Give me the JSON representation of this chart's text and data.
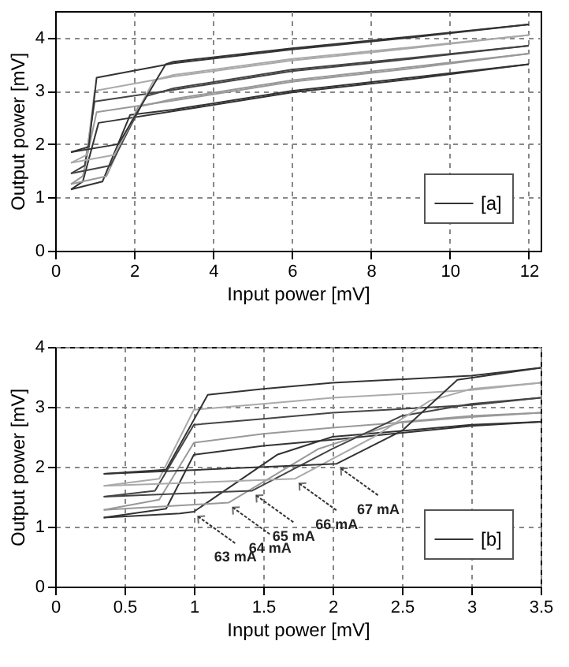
{
  "chart_data": [
    {
      "type": "line",
      "xlabel": "Input power [mV]",
      "ylabel": "Output power [mV]",
      "xlim": [
        0,
        12.3
      ],
      "ylim": [
        0,
        4.5
      ],
      "xticks": [
        0,
        2,
        4,
        6,
        8,
        10,
        12
      ],
      "yticks": [
        0,
        1,
        2,
        3,
        4
      ],
      "grid": true,
      "line_style": "solid",
      "legend": "bottom right",
      "series": [
        {
          "name": "[a]",
          "color": "#333333",
          "x": [
            0.4,
            1.2,
            1.9,
            3,
            6,
            9,
            12
          ],
          "values": [
            1.15,
            1.3,
            2.55,
            2.65,
            3.0,
            3.25,
            3.5
          ]
        },
        {
          "color": "#333333",
          "x": [
            0.4,
            0.7,
            1.1,
            3,
            6,
            9,
            12
          ],
          "values": [
            1.15,
            1.3,
            2.4,
            2.62,
            2.97,
            3.22,
            3.5
          ]
        },
        {
          "color": "#999999",
          "x": [
            0.4,
            1.3,
            2.1,
            3,
            6,
            9,
            12
          ],
          "values": [
            1.25,
            1.4,
            2.7,
            2.85,
            3.2,
            3.45,
            3.7
          ]
        },
        {
          "color": "#999999",
          "x": [
            0.4,
            0.7,
            1.05,
            3,
            6,
            9,
            12
          ],
          "values": [
            1.25,
            1.4,
            2.6,
            2.82,
            3.17,
            3.42,
            3.7
          ]
        },
        {
          "color": "#444444",
          "x": [
            0.4,
            1.4,
            2.3,
            3,
            6,
            9,
            12
          ],
          "values": [
            1.45,
            1.6,
            2.9,
            3.05,
            3.4,
            3.62,
            3.85
          ]
        },
        {
          "color": "#444444",
          "x": [
            0.4,
            0.75,
            1.0,
            3,
            6,
            9,
            12
          ],
          "values": [
            1.45,
            1.6,
            2.8,
            3.02,
            3.37,
            3.6,
            3.85
          ]
        },
        {
          "color": "#aaaaaa",
          "x": [
            0.4,
            1.5,
            2.5,
            3,
            6,
            9,
            12
          ],
          "values": [
            1.65,
            1.8,
            3.2,
            3.3,
            3.6,
            3.82,
            4.05
          ]
        },
        {
          "color": "#aaaaaa",
          "x": [
            0.4,
            0.8,
            1.0,
            3,
            6,
            9,
            12
          ],
          "values": [
            1.65,
            1.8,
            3.0,
            3.27,
            3.57,
            3.8,
            4.05
          ]
        },
        {
          "color": "#333333",
          "x": [
            0.4,
            1.6,
            2.8,
            3,
            6,
            9,
            12
          ],
          "values": [
            1.85,
            2.0,
            3.5,
            3.55,
            3.8,
            4.02,
            4.25
          ]
        },
        {
          "color": "#333333",
          "x": [
            0.4,
            0.85,
            1.05,
            3,
            6,
            9,
            12
          ],
          "values": [
            1.85,
            1.95,
            3.25,
            3.52,
            3.78,
            4.0,
            4.25
          ]
        }
      ]
    },
    {
      "type": "line",
      "xlabel": "Input power [mV]",
      "ylabel": "Output power [mV]",
      "xlim": [
        0,
        3.5
      ],
      "ylim": [
        0,
        4
      ],
      "xticks": [
        0,
        0.5,
        1,
        1.5,
        2,
        2.5,
        3,
        3.5
      ],
      "yticks": [
        0,
        1,
        2,
        3,
        4
      ],
      "grid": true,
      "line_style": "solid",
      "legend": "bottom right",
      "annotations": [
        {
          "text": "63 mA",
          "x": 1.0,
          "y": 1.25
        },
        {
          "text": "64 mA",
          "x": 1.25,
          "y": 1.4
        },
        {
          "text": "65 mA",
          "x": 1.42,
          "y": 1.6
        },
        {
          "text": "66 mA",
          "x": 1.73,
          "y": 1.8
        },
        {
          "text": "67 mA",
          "x": 2.03,
          "y": 2.05
        }
      ],
      "series": [
        {
          "name": "[b]",
          "color": "#333333",
          "x": [
            0.35,
            0.9,
            1.0,
            1.6,
            2.0,
            2.5,
            3.0,
            3.5
          ],
          "values": [
            1.15,
            1.22,
            1.25,
            2.2,
            2.5,
            2.6,
            2.7,
            2.75
          ]
        },
        {
          "color": "#333333",
          "x": [
            0.35,
            0.8,
            1.0,
            1.5,
            2.0,
            3.0,
            3.5
          ],
          "values": [
            1.15,
            1.3,
            2.2,
            2.35,
            2.45,
            2.68,
            2.75
          ]
        },
        {
          "color": "#999999",
          "x": [
            0.35,
            1.25,
            1.9,
            2.5,
            3.0,
            3.5
          ],
          "values": [
            1.28,
            1.4,
            2.3,
            2.75,
            2.85,
            2.9
          ]
        },
        {
          "color": "#999999",
          "x": [
            0.35,
            0.75,
            1.0,
            1.5,
            2.0,
            3.0,
            3.5
          ],
          "values": [
            1.28,
            1.45,
            2.4,
            2.55,
            2.65,
            2.83,
            2.9
          ]
        },
        {
          "color": "#444444",
          "x": [
            0.35,
            1.42,
            2.0,
            2.5,
            3.0,
            3.5
          ],
          "values": [
            1.5,
            1.6,
            2.3,
            2.85,
            3.05,
            3.15
          ]
        },
        {
          "color": "#444444",
          "x": [
            0.35,
            0.72,
            1.0,
            1.5,
            2.0,
            3.0,
            3.5
          ],
          "values": [
            1.5,
            1.6,
            2.7,
            2.8,
            2.9,
            3.03,
            3.15
          ]
        },
        {
          "color": "#aaaaaa",
          "x": [
            0.35,
            1.73,
            2.3,
            2.7,
            3.0,
            3.5
          ],
          "values": [
            1.68,
            1.8,
            2.5,
            3.1,
            3.3,
            3.4
          ]
        },
        {
          "color": "#aaaaaa",
          "x": [
            0.35,
            0.75,
            1.0,
            1.5,
            2.0,
            3.0,
            3.5
          ],
          "values": [
            1.68,
            1.8,
            2.95,
            3.05,
            3.15,
            3.28,
            3.4
          ]
        },
        {
          "color": "#333333",
          "x": [
            0.35,
            2.03,
            2.5,
            2.9,
            3.5
          ],
          "values": [
            1.88,
            2.05,
            2.6,
            3.45,
            3.65
          ]
        },
        {
          "color": "#333333",
          "x": [
            0.35,
            0.8,
            1.1,
            1.5,
            2.0,
            3.0,
            3.5
          ],
          "values": [
            1.88,
            1.95,
            3.2,
            3.3,
            3.4,
            3.52,
            3.65
          ]
        }
      ]
    }
  ]
}
